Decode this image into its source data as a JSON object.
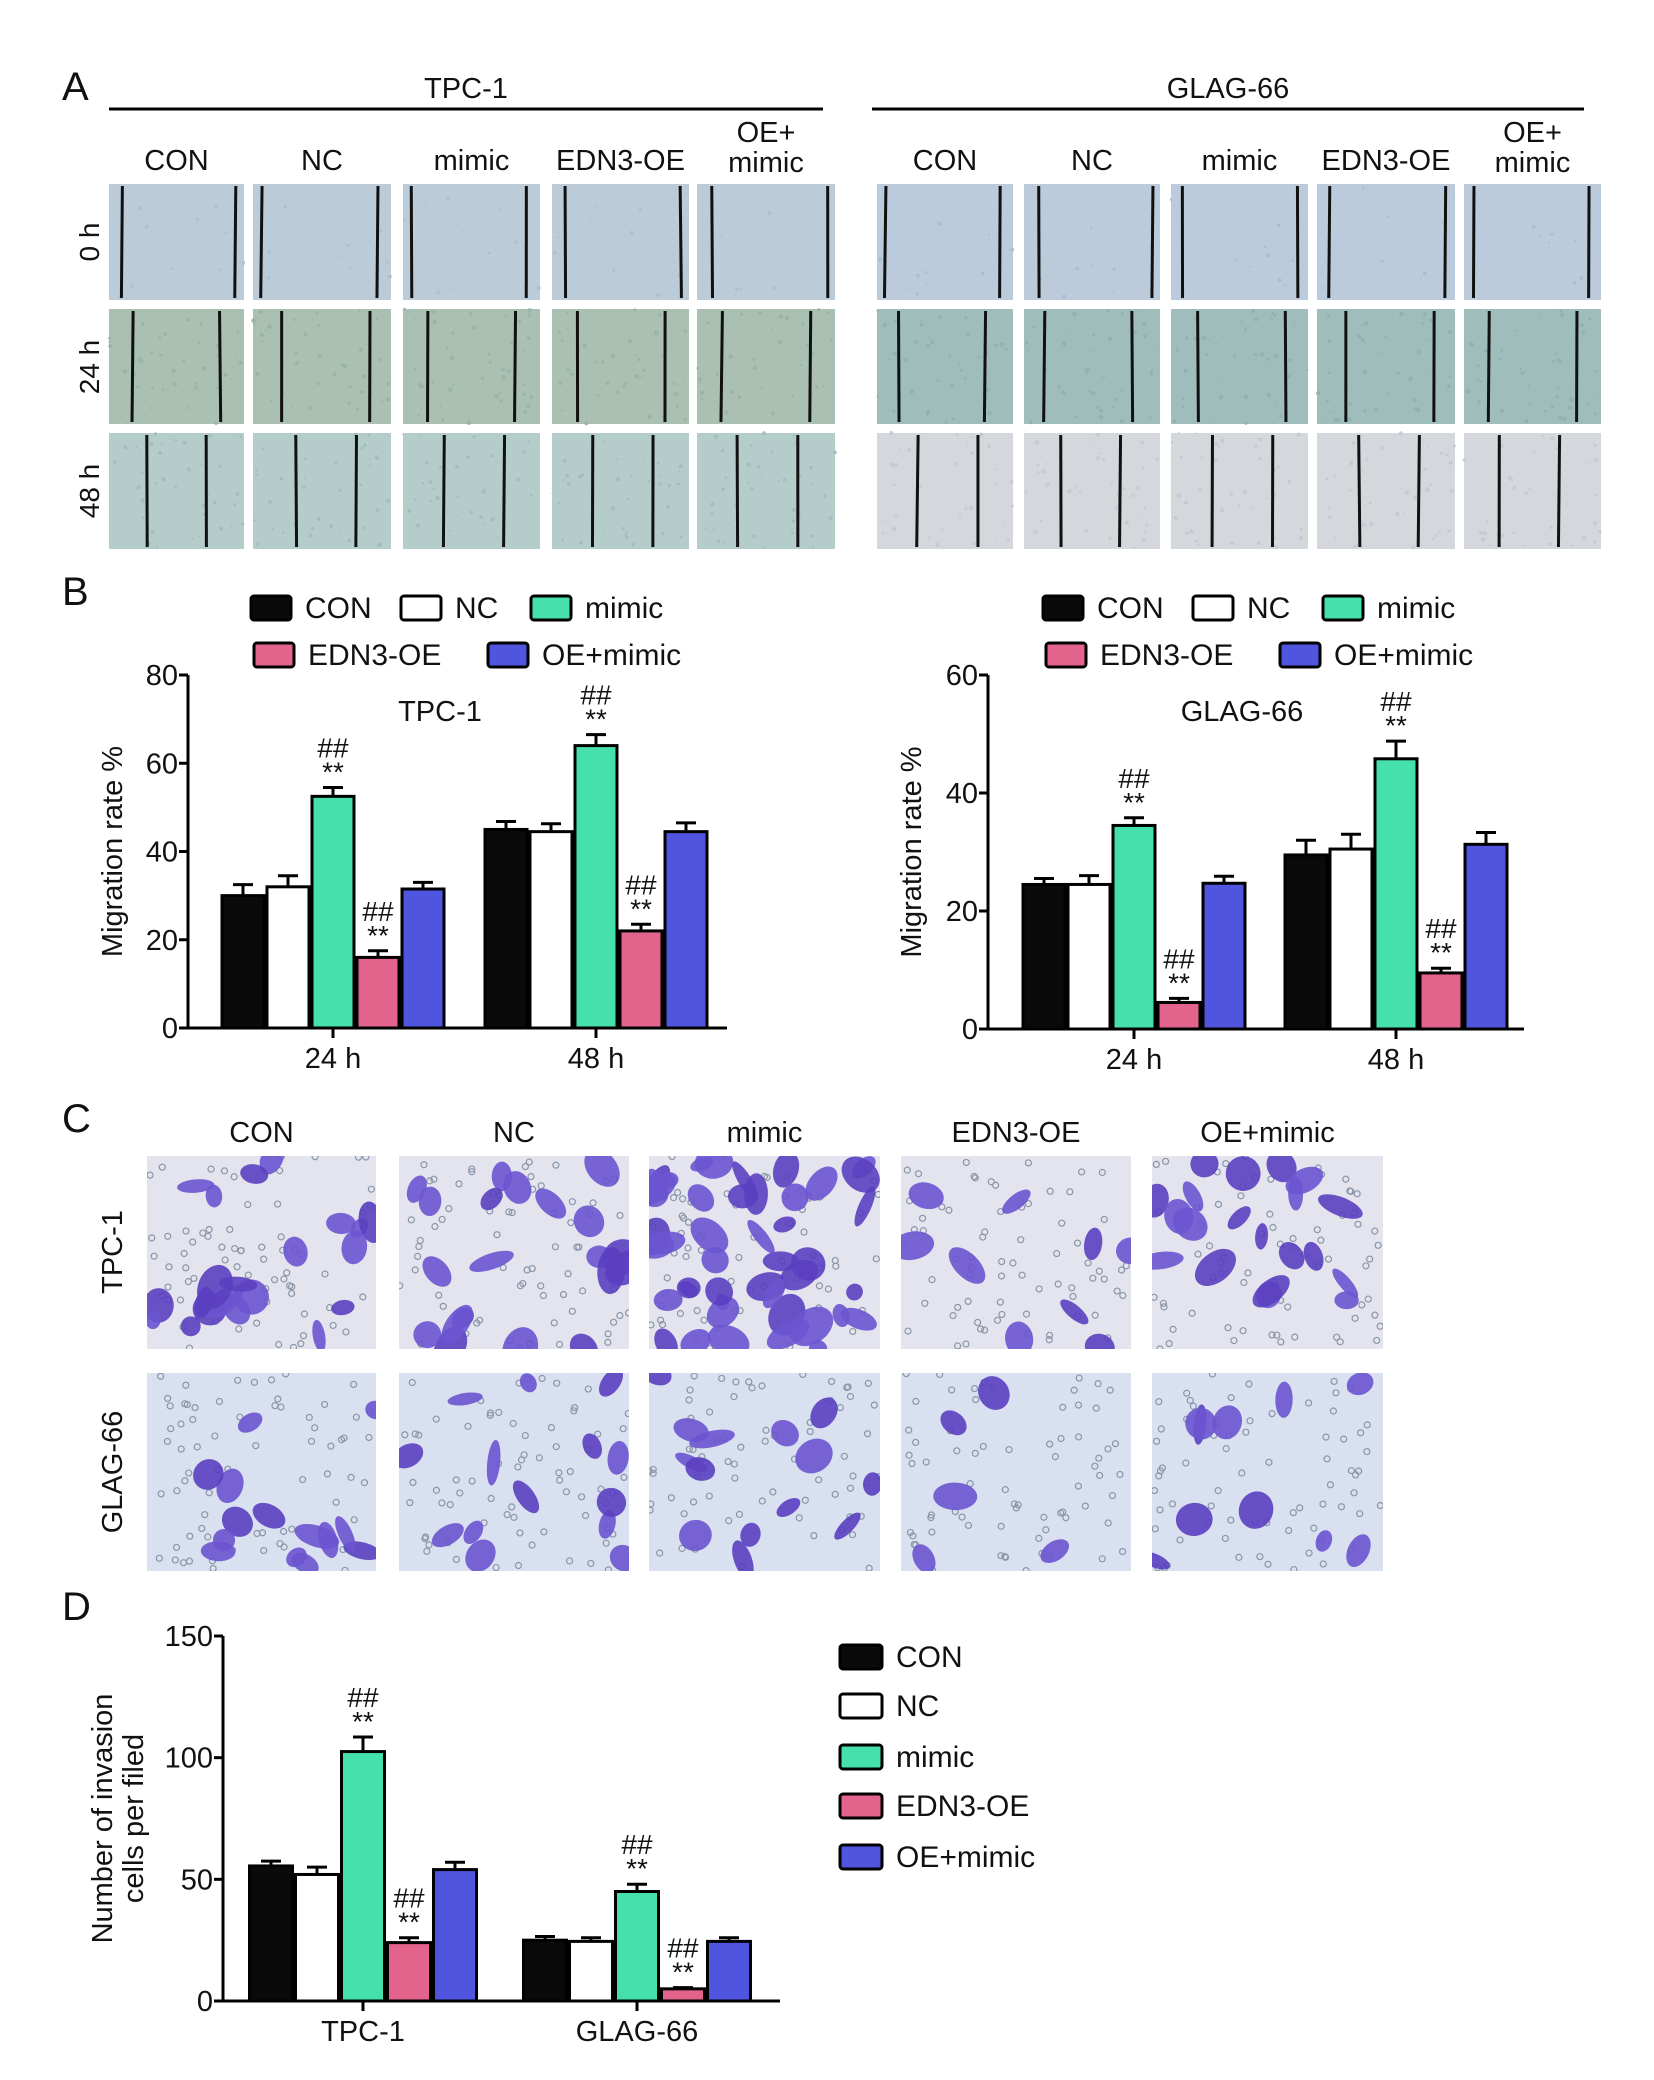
{
  "panel_labels": {
    "a": "A",
    "b": "B",
    "c": "C",
    "d": "D"
  },
  "panel_a": {
    "cell_lines": [
      "TPC-1",
      "GLAG-66"
    ],
    "groups": [
      "CON",
      "NC",
      "mimic",
      "EDN3-OE",
      "OE+ mimic"
    ],
    "times": [
      "0 h",
      "24 h",
      "48 h"
    ]
  },
  "panel_c": {
    "columns": [
      "CON",
      "NC",
      "mimic",
      "EDN3-OE",
      "OE+mimic"
    ],
    "rows": [
      "TPC-1",
      "GLAG-66"
    ]
  },
  "colors": {
    "CON": "#0a0a0a",
    "NC": "#ffffff",
    "mimic": "#45e0ac",
    "EDN3-OE": "#e2648c",
    "OE+mimic": "#5055e0"
  },
  "chart_data": [
    {
      "type": "bar",
      "title": "TPC-1",
      "xlabel": "",
      "ylabel": "Migration rate %",
      "categories": [
        "24 h",
        "48 h"
      ],
      "ylim": [
        0,
        80
      ],
      "yticks": [
        0,
        20,
        40,
        60,
        80
      ],
      "legend": "top",
      "series": [
        {
          "name": "CON",
          "values": [
            30,
            45
          ],
          "errors": [
            2.5,
            1.8
          ],
          "annotations": [
            "",
            ""
          ]
        },
        {
          "name": "NC",
          "values": [
            32,
            44.5
          ],
          "errors": [
            2.5,
            1.8
          ],
          "annotations": [
            "",
            ""
          ]
        },
        {
          "name": "mimic",
          "values": [
            52.5,
            64
          ],
          "errors": [
            2,
            2.5
          ],
          "annotations": [
            "##\n**",
            "##\n**"
          ]
        },
        {
          "name": "EDN3-OE",
          "values": [
            16,
            22
          ],
          "errors": [
            1.5,
            1.5
          ],
          "annotations": [
            "##\n**",
            "##\n**"
          ]
        },
        {
          "name": "OE+mimic",
          "values": [
            31.5,
            44.5
          ],
          "errors": [
            1.5,
            2
          ],
          "annotations": [
            "",
            ""
          ]
        }
      ]
    },
    {
      "type": "bar",
      "title": "GLAG-66",
      "xlabel": "",
      "ylabel": "Migration rate %",
      "categories": [
        "24 h",
        "48 h"
      ],
      "ylim": [
        0,
        60
      ],
      "yticks": [
        0,
        20,
        40,
        60
      ],
      "legend": "top",
      "series": [
        {
          "name": "CON",
          "values": [
            24.5,
            29.5
          ],
          "errors": [
            1,
            2.5
          ],
          "annotations": [
            "",
            ""
          ]
        },
        {
          "name": "NC",
          "values": [
            24.5,
            30.5
          ],
          "errors": [
            1.5,
            2.5
          ],
          "annotations": [
            "",
            ""
          ]
        },
        {
          "name": "mimic",
          "values": [
            34.5,
            45.8
          ],
          "errors": [
            1.3,
            3
          ],
          "annotations": [
            "##\n**",
            "##\n**"
          ]
        },
        {
          "name": "EDN3-OE",
          "values": [
            4.5,
            9.5
          ],
          "errors": [
            0.7,
            0.8
          ],
          "annotations": [
            "##\n**",
            "##\n**"
          ]
        },
        {
          "name": "OE+mimic",
          "values": [
            24.7,
            31.3
          ],
          "errors": [
            1.2,
            2
          ],
          "annotations": [
            "",
            ""
          ]
        }
      ]
    },
    {
      "type": "bar",
      "title": "",
      "xlabel": "",
      "ylabel": "Number of invasion\ncells per filed",
      "categories": [
        "TPC-1",
        "GLAG-66"
      ],
      "ylim": [
        0,
        150
      ],
      "yticks": [
        0,
        50,
        100,
        150
      ],
      "legend": "right",
      "series": [
        {
          "name": "CON",
          "values": [
            55.5,
            25
          ],
          "errors": [
            2,
            1.5
          ],
          "annotations": [
            "",
            ""
          ]
        },
        {
          "name": "NC",
          "values": [
            52,
            24.5
          ],
          "errors": [
            3,
            1.5
          ],
          "annotations": [
            "",
            ""
          ]
        },
        {
          "name": "mimic",
          "values": [
            102.5,
            45
          ],
          "errors": [
            6,
            3
          ],
          "annotations": [
            "##\n**",
            "##\n**"
          ]
        },
        {
          "name": "EDN3-OE",
          "values": [
            24,
            5
          ],
          "errors": [
            2,
            0.5
          ],
          "annotations": [
            "##\n**",
            "##\n**"
          ]
        },
        {
          "name": "OE+mimic",
          "values": [
            54,
            24.5
          ],
          "errors": [
            3,
            1.5
          ],
          "annotations": [
            "",
            ""
          ]
        }
      ]
    }
  ]
}
